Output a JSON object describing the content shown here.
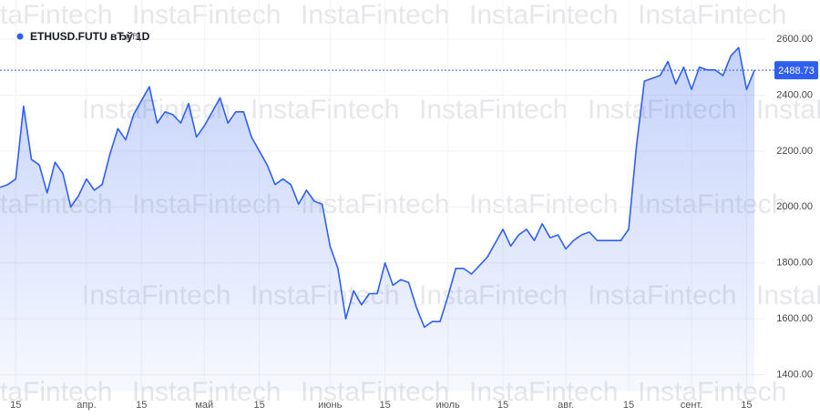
{
  "watermark": "InstaFintech",
  "chart_data": {
    "type": "line",
    "title": "ETHUSD.FUTU вЂў 1D",
    "subtitle": "вЂ¦",
    "color": "#2f5ff0",
    "categories": [
      null,
      null,
      "15",
      null,
      null,
      null,
      null,
      null,
      null,
      null,
      null,
      "апр.",
      null,
      null,
      null,
      null,
      null,
      null,
      "15",
      null,
      null,
      null,
      null,
      null,
      null,
      null,
      "май",
      null,
      null,
      null,
      null,
      null,
      null,
      "15",
      null,
      null,
      null,
      null,
      null,
      null,
      null,
      null,
      "июнь",
      null,
      null,
      null,
      null,
      null,
      null,
      "15",
      null,
      null,
      null,
      null,
      null,
      null,
      null,
      "июль",
      null,
      null,
      null,
      null,
      null,
      null,
      "15",
      null,
      null,
      null,
      null,
      null,
      null,
      null,
      "авг.",
      null,
      null,
      null,
      null,
      null,
      null,
      null,
      "15",
      null,
      null,
      null,
      null,
      null,
      null,
      null,
      "сент.",
      null,
      null,
      null,
      null,
      null,
      null,
      "15",
      null
    ],
    "values": [
      2070,
      2080,
      2100,
      2360,
      2170,
      2150,
      2050,
      2160,
      2120,
      2000,
      2040,
      2100,
      2060,
      2080,
      2190,
      2280,
      2240,
      2330,
      2380,
      2430,
      2300,
      2340,
      2330,
      2300,
      2370,
      2250,
      2290,
      2340,
      2390,
      2300,
      2340,
      2340,
      2250,
      2200,
      2150,
      2080,
      2100,
      2080,
      2010,
      2060,
      2020,
      2010,
      1860,
      1780,
      1600,
      1700,
      1650,
      1690,
      1690,
      1800,
      1720,
      1740,
      1730,
      1640,
      1570,
      1590,
      1590,
      1680,
      1780,
      1780,
      1760,
      1790,
      1820,
      1870,
      1920,
      1860,
      1900,
      1920,
      1880,
      1940,
      1890,
      1900,
      1850,
      1880,
      1900,
      1910,
      1880,
      1880,
      1880,
      1880,
      1920,
      2220,
      2450,
      2460,
      2470,
      2520,
      2440,
      2500,
      2420,
      2500,
      2490,
      2490,
      2470,
      2540,
      2570,
      2420,
      2488.73
    ],
    "ylim": [
      1340,
      2740
    ],
    "yticks": [
      {
        "value": 1400,
        "label": "1400.00"
      },
      {
        "value": 1600,
        "label": "1600.00"
      },
      {
        "value": 1800,
        "label": "1800.00"
      },
      {
        "value": 2000,
        "label": "2000.00"
      },
      {
        "value": 2200,
        "label": "2200.00"
      },
      {
        "value": 2400,
        "label": "2400.00"
      },
      {
        "value": 2600,
        "label": "2600.00"
      }
    ],
    "grid": true
  }
}
